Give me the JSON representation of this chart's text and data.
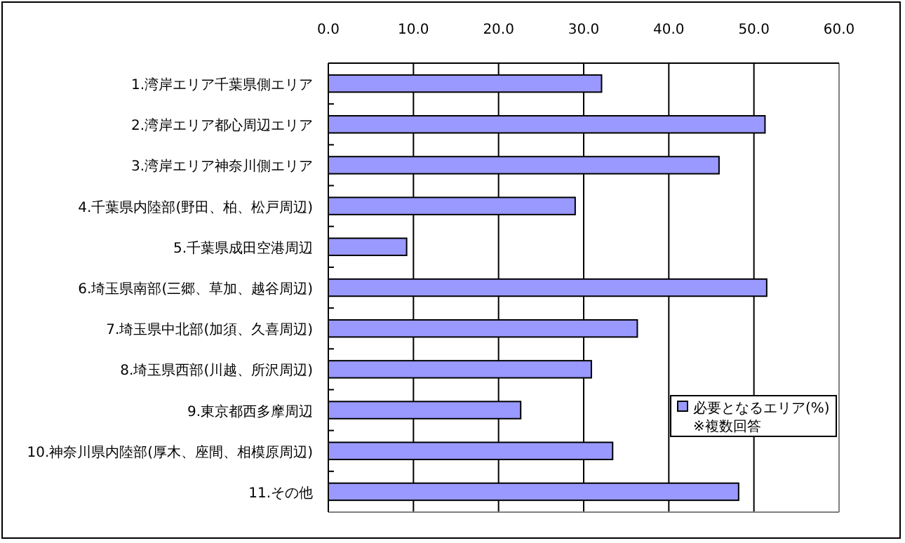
{
  "chart_data": {
    "type": "bar",
    "orientation": "horizontal",
    "categories": [
      "1.湾岸エリア千葉県側エリア",
      "2.湾岸エリア都心周辺エリア",
      "3.湾岸エリア神奈川側エリア",
      "4.千葉県内陸部(野田、柏、松戸周辺)",
      "5.千葉県成田空港周辺",
      "6.埼玉県南部(三郷、草加、越谷周辺)",
      "7.埼玉県中北部(加須、久喜周辺)",
      "8.埼玉県西部(川越、所沢周辺)",
      "9.東京都西多摩周辺",
      "10.神奈川県内陸部(厚木、座間、相模原周辺)",
      "11.その他"
    ],
    "series": [
      {
        "name": "必要となるエリア(%)",
        "color": "#9999ff",
        "values": [
          32.1,
          51.3,
          45.9,
          29.0,
          9.2,
          51.5,
          36.3,
          30.9,
          22.6,
          33.4,
          48.2
        ]
      }
    ],
    "xlim": [
      0,
      60
    ],
    "xticks": [
      {
        "value": 0,
        "label": "0.0"
      },
      {
        "value": 10,
        "label": "10.0"
      },
      {
        "value": 20,
        "label": "20.0"
      },
      {
        "value": 30,
        "label": "30.0"
      },
      {
        "value": 40,
        "label": "40.0"
      },
      {
        "value": 50,
        "label": "50.0"
      },
      {
        "value": 60,
        "label": "60.0"
      }
    ],
    "grid": "x",
    "legend": "right",
    "annotations": [
      "※複数回答"
    ]
  }
}
